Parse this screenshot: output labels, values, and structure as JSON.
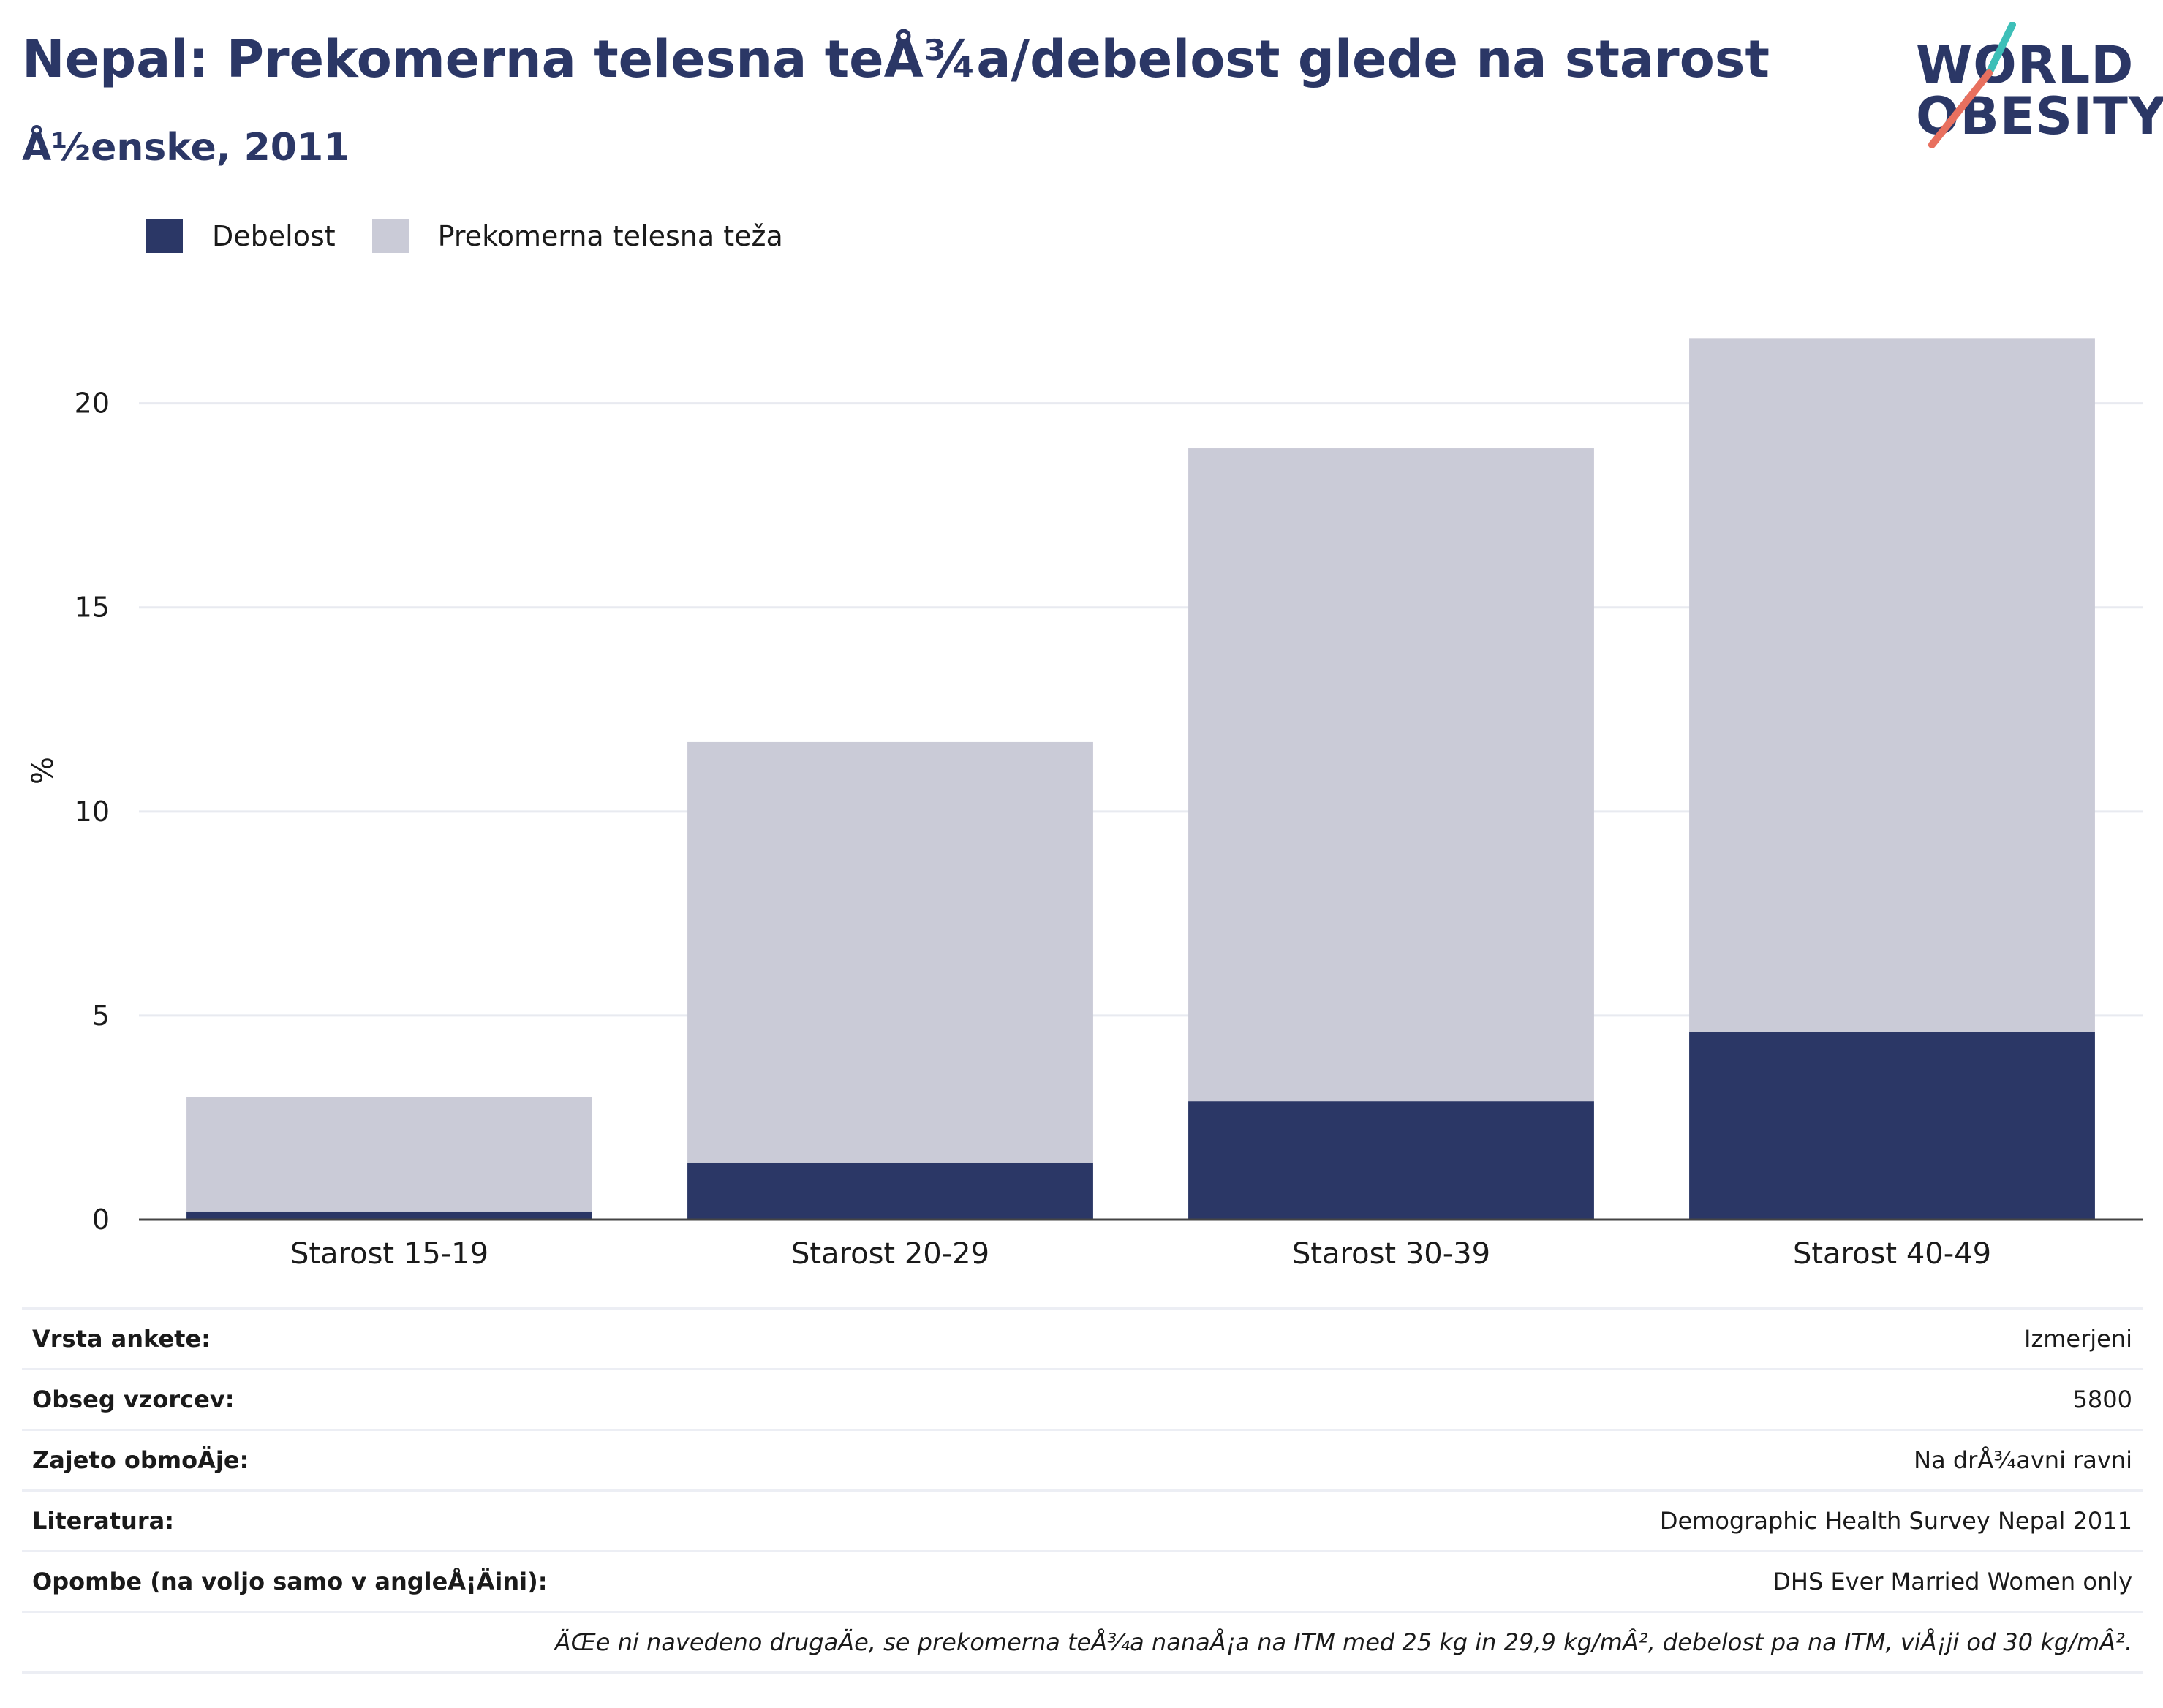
{
  "header": {
    "title": "Nepal: Prekomerna telesna teÅ¾a/debelost glede na starost",
    "subtitle": "Å½enske, 2011"
  },
  "logo": {
    "line1": "WORLD",
    "line2": "OBESITY"
  },
  "colors": {
    "obesity": "#2b3766",
    "overweight": "#cacbd7",
    "title": "#2b3766",
    "logo_teal": "#3dbfb8",
    "logo_coral": "#e8705f"
  },
  "legend": [
    {
      "label": "Debelost",
      "color": "#2b3766"
    },
    {
      "label": "Prekomerna telesna teža",
      "color": "#cacbd7"
    }
  ],
  "chart_data": {
    "type": "bar",
    "stacked": true,
    "categories": [
      "Starost 15-19",
      "Starost 20-29",
      "Starost 30-39",
      "Starost 40-49"
    ],
    "series": [
      {
        "name": "Debelost",
        "values": [
          0.2,
          1.4,
          2.9,
          4.6
        ]
      },
      {
        "name": "Prekomerna telesna teža",
        "values": [
          2.8,
          10.3,
          16.0,
          17.0
        ]
      }
    ],
    "ylabel": "%",
    "yticks": [
      0,
      5,
      10,
      15,
      20
    ],
    "ylim": [
      0,
      22
    ],
    "grid": true,
    "legend_position": "top-left"
  },
  "info": {
    "rows": [
      {
        "key": "Vrsta ankete:",
        "value": "Izmerjeni"
      },
      {
        "key": "Obseg vzorcev:",
        "value": "5800"
      },
      {
        "key": "Zajeto obmoÄje:",
        "value": "Na drÅ¾avni ravni"
      },
      {
        "key": "Literatura:",
        "value": "Demographic Health Survey Nepal 2011"
      },
      {
        "key": "Opombe (na voljo samo v angleÅ¡Äini):",
        "value": "DHS Ever Married Women only"
      }
    ],
    "note": "ÄŒe ni navedeno drugaÄe, se prekomerna teÅ¾a nanaÅ¡a na ITM med 25 kg in 29,9 kg/mÂ², debelost pa na ITM, viÅ¡ji od 30 kg/mÂ²."
  }
}
